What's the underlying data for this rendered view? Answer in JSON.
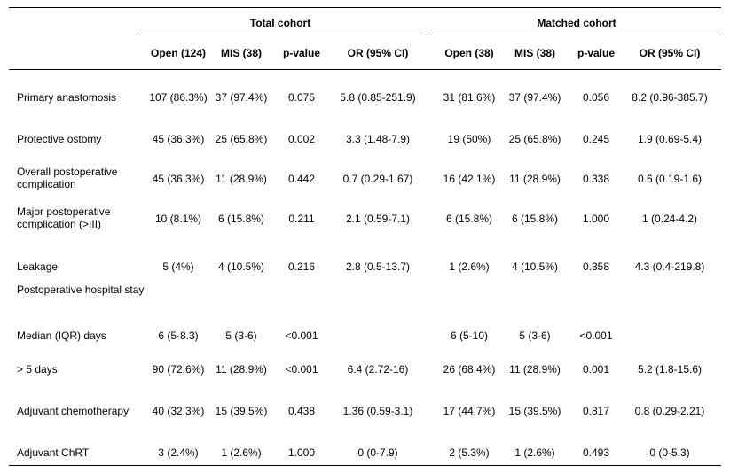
{
  "table": {
    "groups": [
      "Total cohort",
      "Matched cohort"
    ],
    "columns": [
      "Open (124)",
      "MIS  (38)",
      "p-value",
      "OR (95% CI)",
      "Open (38)",
      "MIS (38)",
      "p-value",
      "OR (95% CI)"
    ],
    "rows": [
      {
        "label": [
          "Primary anastomosis"
        ],
        "values": [
          "107 (86.3%)",
          "37 (97.4%)",
          "0.075",
          "5.8 (0.85-251.9)",
          "31 (81.6%)",
          "37 (97.4%)",
          "0.056",
          "8.2 (0.96-385.7)"
        ]
      },
      {
        "label": [
          "Protective ostomy"
        ],
        "values": [
          "45 (36.3%)",
          "25 (65.8%)",
          "0.002",
          "3.3 (1.48-7.9)",
          "19 (50%)",
          "25 (65.8%)",
          "0.245",
          "1.9 (0.69-5.4)"
        ]
      },
      {
        "label": [
          "Overall postoperative",
          "complication"
        ],
        "values": [
          "45 (36.3%)",
          "11 (28.9%)",
          "0.442",
          "0.7 (0.29-1.67)",
          "16 (42.1%)",
          "11 (28.9%)",
          "0.338",
          "0.6 (0.19-1.6)"
        ]
      },
      {
        "label": [
          "Major postoperative",
          "complication (>III)"
        ],
        "values": [
          "10 (8.1%)",
          "6 (15.8%)",
          "0.211",
          "2.1 (0.59-7.1)",
          "6 (15.8%)",
          "6 (15.8%)",
          "1.000",
          "1 (0.24-4.2)"
        ]
      },
      {
        "label": [
          "Leakage"
        ],
        "values": [
          "5 (4%)",
          "4 (10.5%)",
          "0.216",
          "2.8 (0.5-13.7)",
          "1 (2.6%)",
          "4 (10.5%)",
          "0.358",
          "4.3 (0.4-219.8)"
        ]
      },
      {
        "label": [
          "Postoperative hospital stay"
        ],
        "values": [
          "",
          "",
          "",
          "",
          "",
          "",
          "",
          ""
        ]
      },
      {
        "label": [
          "Median (IQR) days"
        ],
        "values": [
          "6 (5-8.3)",
          "5 (3-6)",
          "<0.001",
          "",
          "6 (5-10)",
          "5 (3-6)",
          "<0.001",
          ""
        ]
      },
      {
        "label": [
          "> 5 days"
        ],
        "values": [
          "90 (72.6%)",
          "11 (28.9%)",
          "<0.001",
          "6.4 (2.72-16)",
          "26 (68.4%)",
          "11 (28.9%)",
          "0.001",
          "5.2 (1.8-15.6)"
        ]
      },
      {
        "label": [
          "Adjuvant chemotherapy"
        ],
        "values": [
          "40 (32.3%)",
          "15 (39.5%)",
          "0.438",
          "1.36 (0.59-3.1)",
          "17 (44.7%)",
          "15 (39.5%)",
          "0.817",
          "0.8 (0.29-2.21)"
        ]
      },
      {
        "label": [
          "Adjuvant ChRT"
        ],
        "values": [
          "3 (2.4%)",
          "1 (2.6%)",
          "1.000",
          "0 (0-7.9)",
          "2 (5.3%)",
          "1 (2.6%)",
          "0.493",
          "0 (0-5.3)"
        ]
      }
    ]
  }
}
